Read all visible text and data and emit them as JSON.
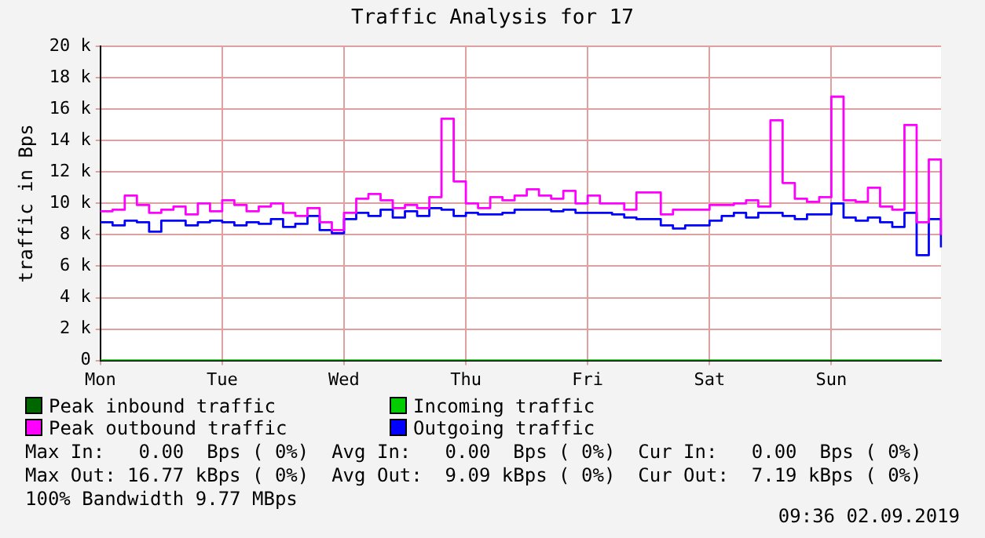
{
  "chart_data": {
    "type": "step",
    "title": "Traffic Analysis for 17",
    "ylabel": "traffic in Bps",
    "categories": [
      "Mon",
      null,
      null,
      null,
      null,
      null,
      null,
      null,
      null,
      null,
      "Tue",
      null,
      null,
      null,
      null,
      null,
      null,
      null,
      null,
      null,
      "Wed",
      null,
      null,
      null,
      null,
      null,
      null,
      null,
      null,
      null,
      "Thu",
      null,
      null,
      null,
      null,
      null,
      null,
      null,
      null,
      null,
      "Fri",
      null,
      null,
      null,
      null,
      null,
      null,
      null,
      null,
      null,
      "Sat",
      null,
      null,
      null,
      null,
      null,
      null,
      null,
      null,
      null,
      "Sun",
      null,
      null,
      null,
      null,
      null,
      null,
      null,
      null,
      null
    ],
    "ylim": [
      0,
      20000
    ],
    "yticks": [
      {
        "value": 0,
        "label": "0"
      },
      {
        "value": 2000,
        "label": "2 k"
      },
      {
        "value": 4000,
        "label": "4 k"
      },
      {
        "value": 6000,
        "label": "6 k"
      },
      {
        "value": 8000,
        "label": "8 k"
      },
      {
        "value": 10000,
        "label": "10 k"
      },
      {
        "value": 12000,
        "label": "12 k"
      },
      {
        "value": 14000,
        "label": "14 k"
      },
      {
        "value": 16000,
        "label": "16 k"
      },
      {
        "value": 18000,
        "label": "18 k"
      },
      {
        "value": 20000,
        "label": "20 k"
      }
    ],
    "grid": true,
    "legend": "bottom",
    "marker": "none",
    "line_style": "solid",
    "series": [
      {
        "name": "Peak inbound traffic",
        "color": "#006600",
        "values": [
          null,
          null,
          null,
          null,
          null,
          null,
          null,
          null,
          null,
          null,
          null,
          null,
          null,
          null,
          null,
          null,
          null,
          null,
          null,
          null,
          null,
          null,
          null,
          null,
          null,
          null,
          null,
          null,
          null,
          null,
          null,
          null,
          null,
          null,
          null,
          null,
          null,
          null,
          null,
          null,
          null,
          null,
          null,
          null,
          null,
          null,
          null,
          null,
          null,
          null,
          null,
          null,
          null,
          null,
          null,
          null,
          null,
          null,
          null,
          null,
          null,
          null,
          null,
          null,
          null,
          null,
          null,
          null,
          null,
          null
        ]
      },
      {
        "name": "Incoming traffic",
        "color": "#00cc00",
        "values": [
          0,
          0,
          0,
          0,
          0,
          0,
          0,
          0,
          0,
          0,
          0,
          0,
          0,
          0,
          0,
          0,
          0,
          0,
          0,
          0,
          0,
          0,
          0,
          0,
          0,
          0,
          0,
          0,
          0,
          0,
          0,
          0,
          0,
          0,
          0,
          0,
          0,
          0,
          0,
          0,
          0,
          0,
          0,
          0,
          0,
          0,
          0,
          0,
          0,
          0,
          0,
          0,
          0,
          0,
          0,
          0,
          0,
          0,
          0,
          0,
          0,
          0,
          0,
          0,
          0,
          0,
          0,
          0,
          0,
          0
        ]
      },
      {
        "name": "Peak outbound traffic",
        "color": "#ff00ff",
        "values": [
          9500,
          9600,
          10500,
          9900,
          9400,
          9600,
          9800,
          9300,
          10000,
          9500,
          10200,
          9900,
          9500,
          9800,
          10000,
          9400,
          9200,
          9700,
          8800,
          8300,
          9400,
          10300,
          10600,
          10200,
          9700,
          9900,
          9700,
          10400,
          15400,
          11400,
          10000,
          9700,
          10400,
          10200,
          10500,
          10900,
          10500,
          10300,
          10800,
          10000,
          10500,
          10000,
          10000,
          9600,
          10700,
          10700,
          9300,
          9600,
          9600,
          9600,
          9900,
          9900,
          10000,
          10200,
          9800,
          15300,
          11300,
          10300,
          10100,
          10400,
          16800,
          10200,
          10100,
          11000,
          9800,
          9600,
          15000,
          8800,
          12800,
          8000
        ]
      },
      {
        "name": "Outgoing traffic",
        "color": "#0000ff",
        "values": [
          8800,
          8600,
          8900,
          8800,
          8200,
          8900,
          8900,
          8600,
          8800,
          8900,
          8800,
          8600,
          8800,
          8700,
          9000,
          8500,
          8700,
          9200,
          8300,
          8100,
          9000,
          9400,
          9200,
          9600,
          9100,
          9500,
          9200,
          9700,
          9600,
          9200,
          9400,
          9300,
          9300,
          9400,
          9600,
          9600,
          9600,
          9500,
          9600,
          9400,
          9400,
          9400,
          9300,
          9100,
          9000,
          9000,
          8600,
          8400,
          8600,
          8600,
          8900,
          9200,
          9400,
          9100,
          9400,
          9400,
          9200,
          9000,
          9300,
          9300,
          10000,
          9100,
          8900,
          9100,
          8800,
          8500,
          9400,
          6700,
          9000,
          7200
        ]
      }
    ],
    "annotations": [
      "Max In:   0.00  Bps ( 0%)  Avg In:   0.00  Bps ( 0%)  Cur In:   0.00  Bps ( 0%)",
      "Max Out: 16.77 kBps ( 0%)  Avg Out:  9.09 kBps ( 0%)  Cur Out:  7.19 kBps ( 0%)",
      "100% Bandwidth 9.77 MBps",
      "09:36 02.09.2019"
    ]
  }
}
